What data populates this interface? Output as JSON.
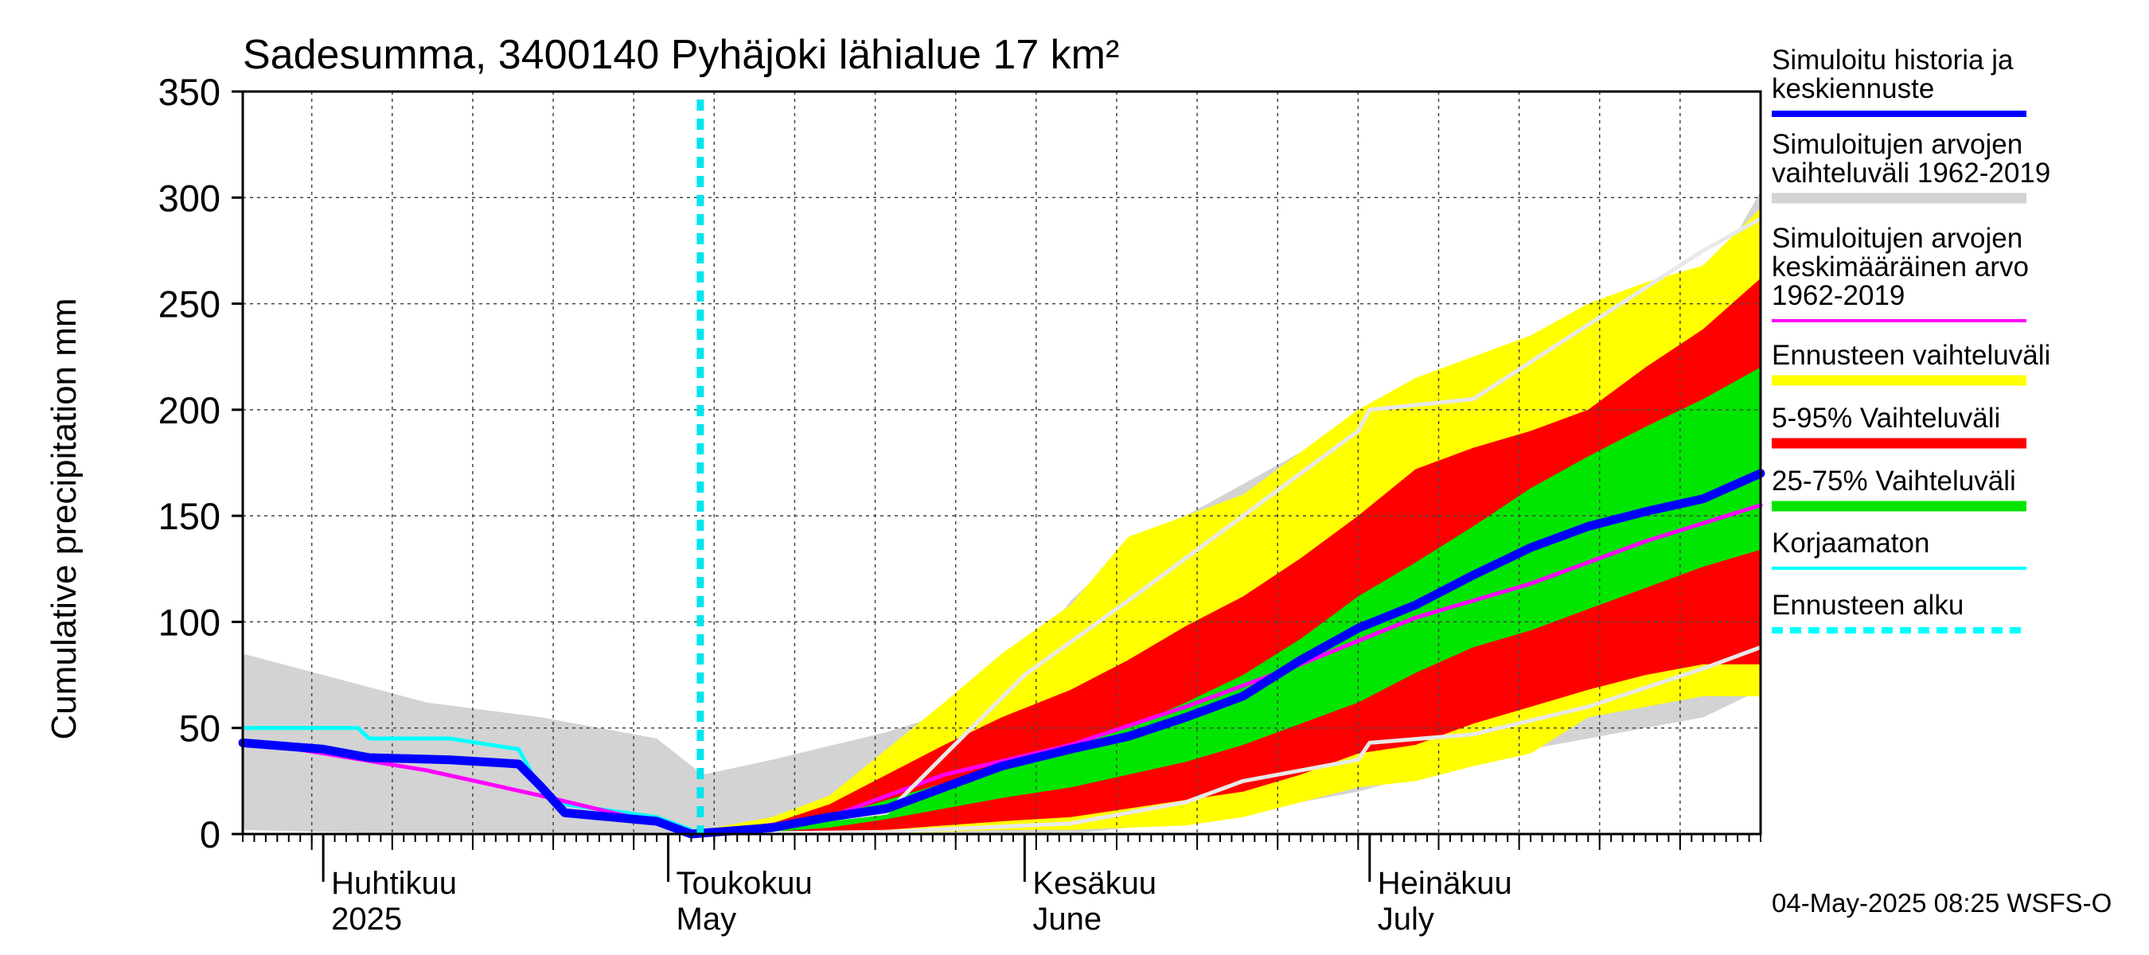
{
  "chart_data": {
    "type": "area",
    "title": "Sadesumma, 3400140 Pyhäjoki lähialue 17 km²",
    "ylabel": "Cumulative precipitation   mm",
    "ylim": [
      0,
      350
    ],
    "yticks": [
      0,
      50,
      100,
      150,
      200,
      250,
      300,
      350
    ],
    "x_range": [
      "2025-03-25",
      "2025-08-04"
    ],
    "forecast_start": "2025-05-04",
    "grid": true,
    "legend_position": "right",
    "month_labels": [
      {
        "date": "2025-04-01",
        "fi": "Huhtikuu",
        "en": "2025"
      },
      {
        "date": "2025-05-01",
        "fi": "Toukokuu",
        "en": "May"
      },
      {
        "date": "2025-06-01",
        "fi": "Kesäkuu",
        "en": "June"
      },
      {
        "date": "2025-07-01",
        "fi": "Heinäkuu",
        "en": "July"
      }
    ],
    "legend": [
      {
        "lines": [
          "Simuloitu historia ja",
          "keskiennuste"
        ],
        "color": "#0000ff",
        "style": "thick"
      },
      {
        "lines": [
          "Simuloitujen arvojen",
          "vaihteluväli 1962-2019"
        ],
        "color": "#d3d3d3",
        "style": "band"
      },
      {
        "lines": [
          "Simuloitujen arvojen",
          "keskimääräinen arvo",
          "   1962-2019"
        ],
        "color": "#ff00ff",
        "style": "thin"
      },
      {
        "lines": [
          "Ennusteen vaihteluväli"
        ],
        "color": "#ffff00",
        "style": "band"
      },
      {
        "lines": [
          "5-95% Vaihteluväli"
        ],
        "color": "#ff0000",
        "style": "band"
      },
      {
        "lines": [
          "25-75% Vaihteluväli"
        ],
        "color": "#00e600",
        "style": "band"
      },
      {
        "lines": [
          "Korjaamaton"
        ],
        "color": "#00ffff",
        "style": "thin"
      },
      {
        "lines": [
          "Ennusteen alku"
        ],
        "color": "#00ffff",
        "style": "dashed"
      }
    ],
    "series": [
      {
        "name": "Simulated history range 1962-2019",
        "color": "#d3d3d3",
        "kind": "band",
        "x": [
          "2025-03-25",
          "2025-04-01",
          "2025-04-10",
          "2025-04-20",
          "2025-04-30",
          "2025-05-04",
          "2025-05-10",
          "2025-05-20",
          "2025-05-30",
          "2025-06-05",
          "2025-06-10",
          "2025-06-20",
          "2025-06-30",
          "2025-07-10",
          "2025-07-20",
          "2025-07-30",
          "2025-08-04"
        ],
        "upper": [
          85,
          75,
          62,
          55,
          45,
          28,
          35,
          48,
          65,
          110,
          135,
          165,
          195,
          213,
          222,
          255,
          303
        ],
        "lower": [
          2,
          1,
          0,
          0,
          0,
          0,
          0,
          0,
          0,
          0,
          3,
          10,
          20,
          35,
          45,
          55,
          68
        ]
      },
      {
        "name": "Forecast range",
        "color": "#ffff00",
        "kind": "band",
        "x": [
          "2025-05-04",
          "2025-05-10",
          "2025-05-15",
          "2025-05-20",
          "2025-05-25",
          "2025-05-30",
          "2025-06-05",
          "2025-06-10",
          "2025-06-15",
          "2025-06-20",
          "2025-06-25",
          "2025-06-30",
          "2025-07-05",
          "2025-07-10",
          "2025-07-15",
          "2025-07-20",
          "2025-07-25",
          "2025-07-30",
          "2025-08-04"
        ],
        "upper": [
          2,
          8,
          18,
          40,
          62,
          85,
          108,
          140,
          150,
          160,
          180,
          200,
          215,
          225,
          235,
          250,
          260,
          268,
          295
        ],
        "lower": [
          0,
          0,
          0,
          0,
          1,
          2,
          2,
          3,
          4,
          8,
          15,
          22,
          25,
          32,
          38,
          55,
          60,
          65,
          65
        ]
      },
      {
        "name": "5-95%",
        "color": "#ff0000",
        "kind": "band",
        "x": [
          "2025-05-04",
          "2025-05-10",
          "2025-05-15",
          "2025-05-20",
          "2025-05-25",
          "2025-05-30",
          "2025-06-05",
          "2025-06-10",
          "2025-06-15",
          "2025-06-20",
          "2025-06-25",
          "2025-06-30",
          "2025-07-05",
          "2025-07-10",
          "2025-07-15",
          "2025-07-20",
          "2025-07-25",
          "2025-07-30",
          "2025-08-04"
        ],
        "upper": [
          1,
          5,
          14,
          28,
          42,
          55,
          68,
          82,
          98,
          112,
          130,
          150,
          172,
          182,
          190,
          200,
          220,
          238,
          262
        ],
        "lower": [
          0,
          0,
          1,
          2,
          4,
          6,
          8,
          12,
          16,
          20,
          28,
          38,
          42,
          52,
          60,
          68,
          75,
          80,
          80
        ]
      },
      {
        "name": "25-75%",
        "color": "#00e600",
        "kind": "band",
        "x": [
          "2025-05-04",
          "2025-05-10",
          "2025-05-15",
          "2025-05-20",
          "2025-05-25",
          "2025-05-30",
          "2025-06-05",
          "2025-06-10",
          "2025-06-15",
          "2025-06-20",
          "2025-06-25",
          "2025-06-30",
          "2025-07-05",
          "2025-07-10",
          "2025-07-15",
          "2025-07-20",
          "2025-07-25",
          "2025-07-30",
          "2025-08-04"
        ],
        "upper": [
          1,
          3,
          8,
          16,
          24,
          32,
          42,
          50,
          62,
          75,
          92,
          112,
          128,
          145,
          163,
          178,
          192,
          205,
          220
        ],
        "lower": [
          0,
          1,
          3,
          7,
          12,
          17,
          22,
          28,
          34,
          42,
          52,
          62,
          76,
          88,
          96,
          106,
          116,
          126,
          134
        ]
      },
      {
        "name": "Korjaamaton",
        "color": "#00ffff",
        "kind": "line",
        "x": [
          "2025-03-25",
          "2025-04-04",
          "2025-04-05",
          "2025-04-12",
          "2025-04-18",
          "2025-04-20",
          "2025-04-22",
          "2025-04-30",
          "2025-05-03"
        ],
        "y": [
          50,
          50,
          45,
          45,
          40,
          20,
          14,
          8,
          2
        ]
      },
      {
        "name": "Simulated history mean 1962-2019",
        "color": "#ff00ff",
        "kind": "line",
        "x": [
          "2025-03-25",
          "2025-04-01",
          "2025-04-10",
          "2025-04-20",
          "2025-05-04",
          "2025-05-15",
          "2025-05-25",
          "2025-06-05",
          "2025-06-15",
          "2025-06-25",
          "2025-07-05",
          "2025-07-15",
          "2025-07-25",
          "2025-08-04"
        ],
        "y": [
          44,
          38,
          30,
          18,
          0,
          8,
          28,
          42,
          60,
          80,
          102,
          118,
          138,
          155
        ]
      },
      {
        "name": "Min scenario line",
        "color": "#e8e8e8",
        "kind": "line",
        "x": [
          "2025-05-04",
          "2025-05-20",
          "2025-06-05",
          "2025-06-15",
          "2025-06-20",
          "2025-06-30",
          "2025-07-01",
          "2025-07-10",
          "2025-07-20",
          "2025-07-30",
          "2025-08-04"
        ],
        "y": [
          0,
          1,
          5,
          15,
          25,
          35,
          43,
          47,
          60,
          78,
          88
        ]
      },
      {
        "name": "Max scenario line",
        "color": "#e8e8e8",
        "kind": "line",
        "x": [
          "2025-05-04",
          "2025-05-20",
          "2025-06-01",
          "2025-06-10",
          "2025-06-20",
          "2025-06-30",
          "2025-07-01",
          "2025-07-10",
          "2025-07-20",
          "2025-07-30",
          "2025-08-04"
        ],
        "y": [
          0,
          10,
          75,
          110,
          150,
          190,
          200,
          205,
          240,
          275,
          290
        ]
      },
      {
        "name": "Simuloitu historia ja keskiennuste",
        "color": "#0000ff",
        "kind": "thick-line",
        "x": [
          "2025-03-25",
          "2025-04-01",
          "2025-04-05",
          "2025-04-12",
          "2025-04-18",
          "2025-04-20",
          "2025-04-22",
          "2025-04-30",
          "2025-05-03",
          "2025-05-10",
          "2025-05-15",
          "2025-05-20",
          "2025-05-25",
          "2025-05-30",
          "2025-06-05",
          "2025-06-10",
          "2025-06-15",
          "2025-06-20",
          "2025-06-25",
          "2025-06-30",
          "2025-07-05",
          "2025-07-10",
          "2025-07-15",
          "2025-07-20",
          "2025-07-25",
          "2025-07-30",
          "2025-08-04"
        ],
        "y": [
          43,
          40,
          36,
          35,
          33,
          22,
          10,
          6,
          0,
          3,
          8,
          12,
          22,
          32,
          40,
          46,
          55,
          65,
          82,
          97,
          108,
          122,
          135,
          145,
          152,
          158,
          170
        ]
      }
    ]
  },
  "footer": "04-May-2025 08:25 WSFS-O"
}
